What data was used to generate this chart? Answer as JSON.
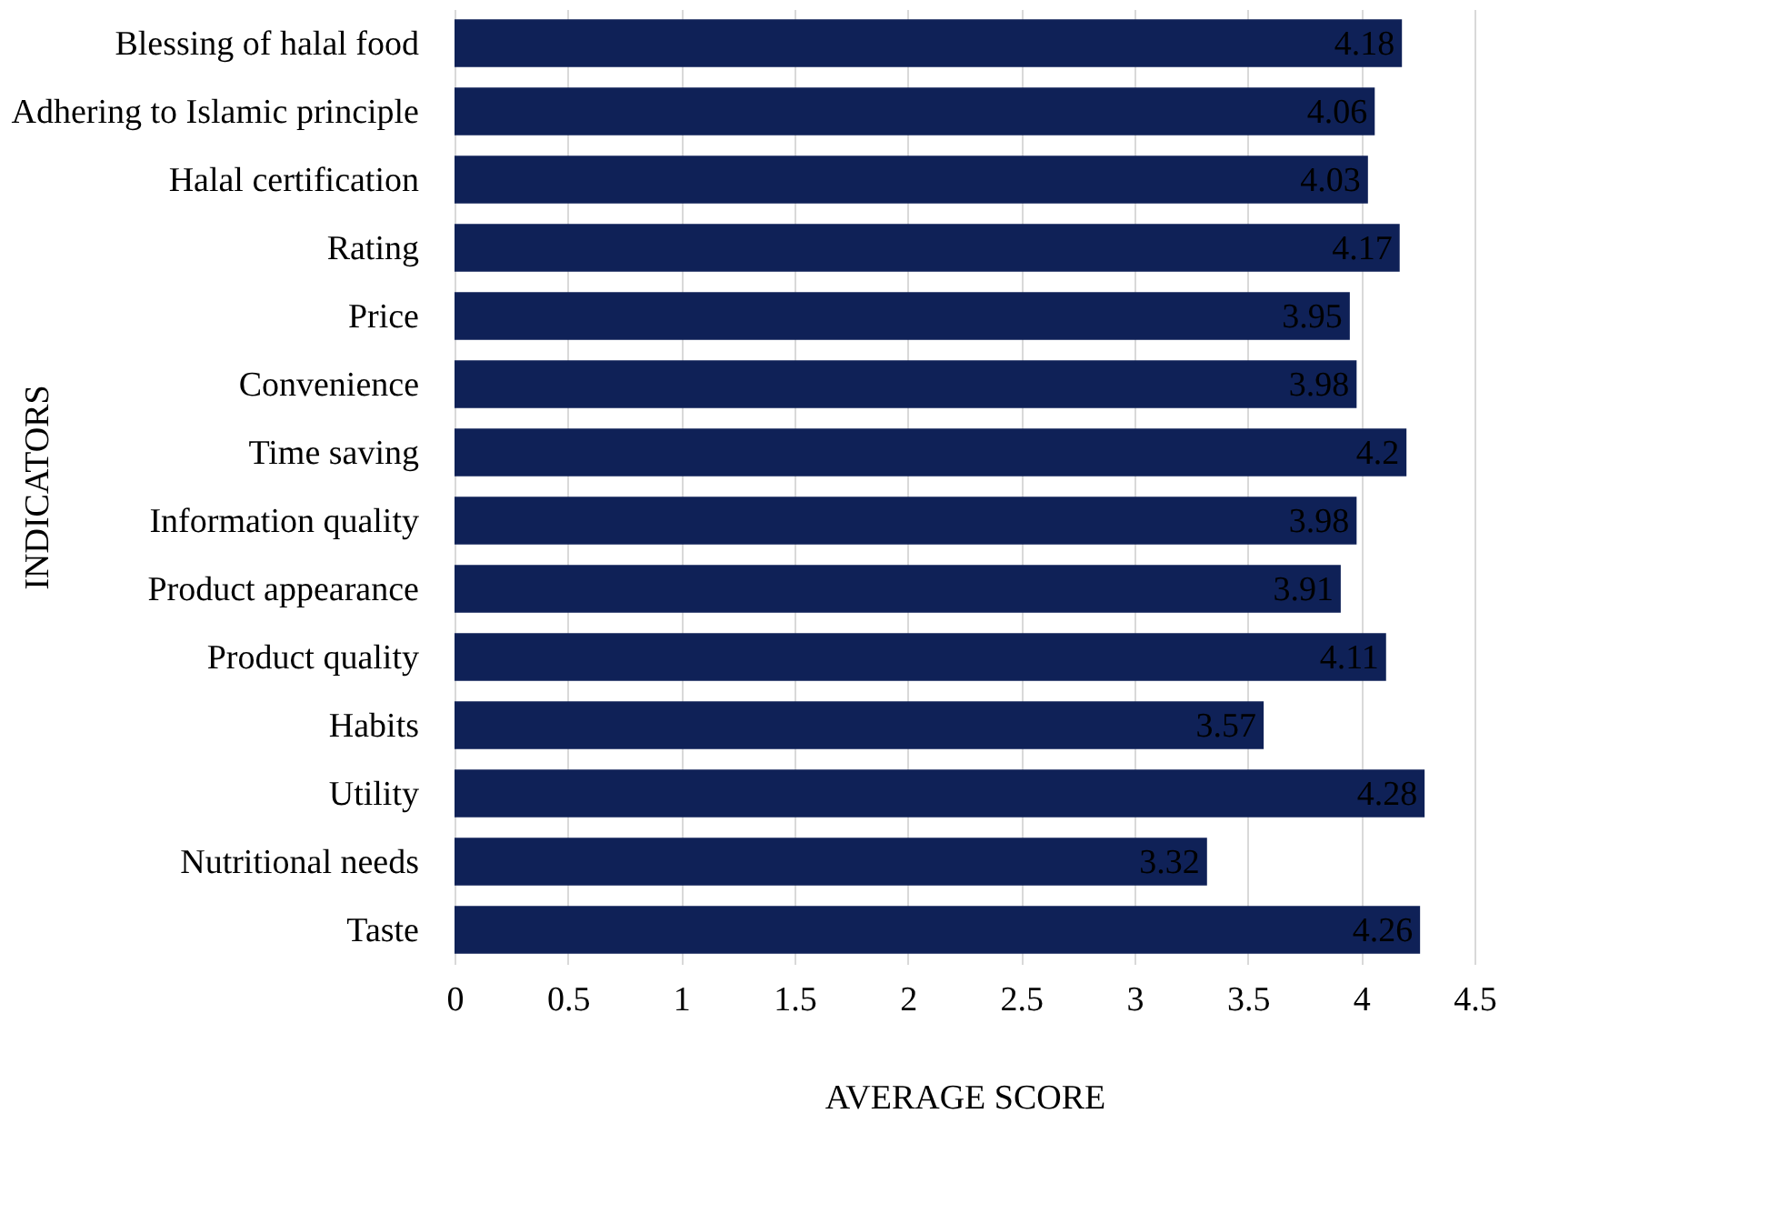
{
  "chart_data": {
    "type": "bar",
    "orientation": "horizontal",
    "xlabel": "AVERAGE SCORE",
    "ylabel": "INDICATORS",
    "categories": [
      "Blessing of halal food",
      "Adhering to Islamic principle",
      "Halal certification",
      "Rating",
      "Price",
      "Convenience",
      "Time saving",
      "Information quality",
      "Product appearance",
      "Product quality",
      "Habits",
      "Utility",
      "Nutritional needs",
      "Taste"
    ],
    "values": [
      4.18,
      4.06,
      4.03,
      4.17,
      3.95,
      3.98,
      4.2,
      3.98,
      3.91,
      4.11,
      3.57,
      4.28,
      3.32,
      4.26
    ],
    "color": "#0f2157",
    "xlim": [
      0,
      4.5
    ],
    "xticks": [
      0,
      0.5,
      1,
      1.5,
      2,
      2.5,
      3,
      3.5,
      4,
      4.5
    ],
    "grid": "x",
    "data_labels": true
  }
}
